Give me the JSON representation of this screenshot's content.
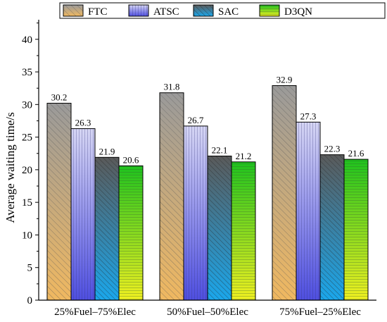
{
  "chart_data": {
    "type": "bar",
    "title": "",
    "xlabel": "",
    "ylabel": "Average waiting time/s",
    "categories": [
      "25%Fuel–75%Elec",
      "50%Fuel–50%Elec",
      "75%Fuel–25%Elec"
    ],
    "series": [
      {
        "name": "FTC",
        "values": [
          30.2,
          31.8,
          32.9
        ]
      },
      {
        "name": "ATSC",
        "values": [
          26.3,
          26.7,
          27.3
        ]
      },
      {
        "name": "SAC",
        "values": [
          21.9,
          22.1,
          22.3
        ]
      },
      {
        "name": "D3QN",
        "values": [
          20.6,
          21.2,
          21.6
        ]
      }
    ],
    "ylim": [
      0,
      43
    ],
    "yticks": [
      0,
      5,
      10,
      15,
      20,
      25,
      30,
      35,
      40
    ],
    "grid": false,
    "legend_position": "top",
    "colors": {
      "FTC": {
        "top": "#9a9a9a",
        "bottom": "#f0b860",
        "hatch": "#555555"
      },
      "ATSC": {
        "top": "#d6d6f4",
        "bottom": "#4e4ee0",
        "hatch": "#333377"
      },
      "SAC": {
        "top": "#5a5a5a",
        "bottom": "#1aa7ec",
        "hatch": "#222222"
      },
      "D3QN": {
        "top": "#1ec21e",
        "bottom": "#f0f020",
        "hatch": "#335533"
      }
    }
  }
}
